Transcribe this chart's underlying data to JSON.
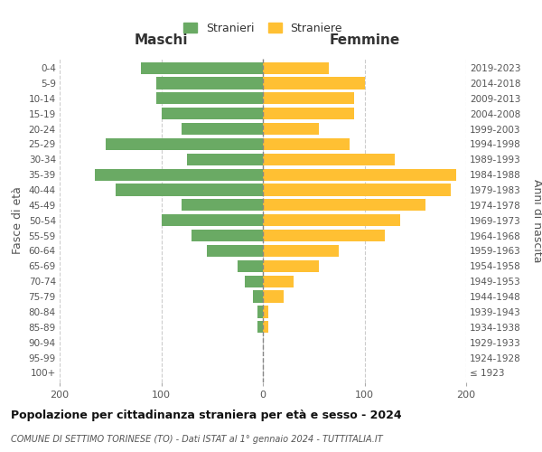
{
  "age_groups": [
    "100+",
    "95-99",
    "90-94",
    "85-89",
    "80-84",
    "75-79",
    "70-74",
    "65-69",
    "60-64",
    "55-59",
    "50-54",
    "45-49",
    "40-44",
    "35-39",
    "30-34",
    "25-29",
    "20-24",
    "15-19",
    "10-14",
    "5-9",
    "0-4"
  ],
  "birth_years": [
    "≤ 1923",
    "1924-1928",
    "1929-1933",
    "1934-1938",
    "1939-1943",
    "1944-1948",
    "1949-1953",
    "1954-1958",
    "1959-1963",
    "1964-1968",
    "1969-1973",
    "1974-1978",
    "1979-1983",
    "1984-1988",
    "1989-1993",
    "1994-1998",
    "1999-2003",
    "2004-2008",
    "2009-2013",
    "2014-2018",
    "2019-2023"
  ],
  "maschi": [
    0,
    0,
    0,
    5,
    5,
    10,
    18,
    25,
    55,
    70,
    100,
    80,
    145,
    165,
    75,
    155,
    80,
    100,
    105,
    105,
    120
  ],
  "femmine": [
    0,
    0,
    0,
    5,
    5,
    20,
    30,
    55,
    75,
    120,
    135,
    160,
    185,
    190,
    130,
    85,
    55,
    90,
    90,
    100,
    65
  ],
  "color_maschi": "#6aaa64",
  "color_femmine": "#ffc033",
  "title": "Popolazione per cittadinanza straniera per età e sesso - 2024",
  "subtitle": "COMUNE DI SETTIMO TORINESE (TO) - Dati ISTAT al 1° gennaio 2024 - TUTTITALIA.IT",
  "xlabel_left": "Maschi",
  "xlabel_right": "Femmine",
  "ylabel_left": "Fasce di età",
  "ylabel_right": "Anni di nascita",
  "legend_maschi": "Stranieri",
  "legend_femmine": "Straniere",
  "xlim": 200,
  "background_color": "#ffffff",
  "grid_color": "#cccccc"
}
